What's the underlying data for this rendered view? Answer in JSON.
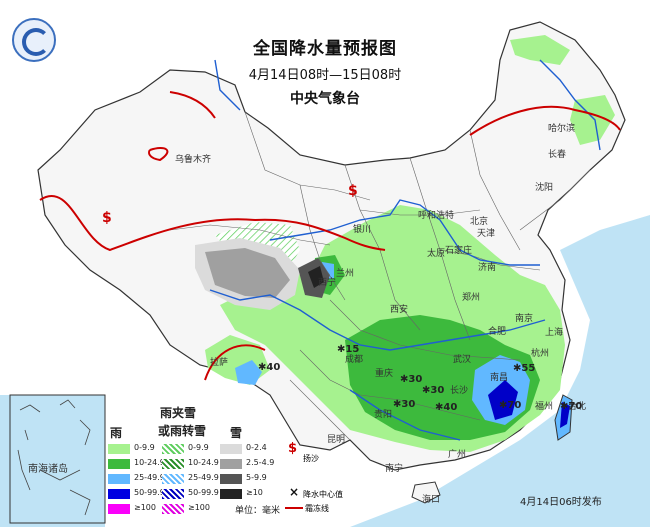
{
  "title": "全国降水量预报图",
  "period": "4月14日08时—15日08时",
  "agency": "中央气象台",
  "issued": "4月14日06时发布",
  "unit": "单位：毫米",
  "inset_label": "南海诸岛",
  "legend": {
    "col_rain": "雨",
    "col_mix": "雨夹雪\n或雨转雪",
    "col_mix_line1": "雨夹雪",
    "col_mix_line2": "或雨转雪",
    "col_snow": "雪",
    "rain": [
      "0-9.9",
      "10-24.9",
      "25-49.9",
      "50-99.9",
      "≥100"
    ],
    "mix": [
      "0-9.9",
      "10-24.9",
      "25-49.9",
      "50-99.9",
      "≥100"
    ],
    "snow": [
      "0-2.4",
      "2.5-4.9",
      "5-9.9",
      "≥10"
    ],
    "dust_label": "扬沙",
    "center_label": "降水中心值",
    "frost_label": "霜冻线"
  },
  "colors": {
    "rain_1": "#a6f28f",
    "rain_2": "#3dba3d",
    "rain_3": "#61b8ff",
    "rain_4": "#0000e1",
    "rain_5": "#fa00fa",
    "snow_1": "#dbdbdb",
    "snow_2": "#a0a0a0",
    "snow_3": "#555555",
    "snow_4": "#222222",
    "frost": "#cc0000",
    "sea": "#bfe3f5"
  },
  "cities": [
    "乌鲁木齐",
    "哈尔滨",
    "长春",
    "沈阳",
    "呼和浩特",
    "北京",
    "天津",
    "银川",
    "太原",
    "石家庄",
    "济南",
    "兰州",
    "西宁",
    "西安",
    "郑州",
    "合肥",
    "南京",
    "上海",
    "杭州",
    "成都",
    "重庆",
    "武汉",
    "长沙",
    "南昌",
    "福州",
    "台北",
    "贵阳",
    "昆明",
    "南宁",
    "广州",
    "海口",
    "拉萨"
  ],
  "centers": [
    "40",
    "15",
    "30",
    "30",
    "30",
    "40",
    "55",
    "70",
    "70"
  ]
}
